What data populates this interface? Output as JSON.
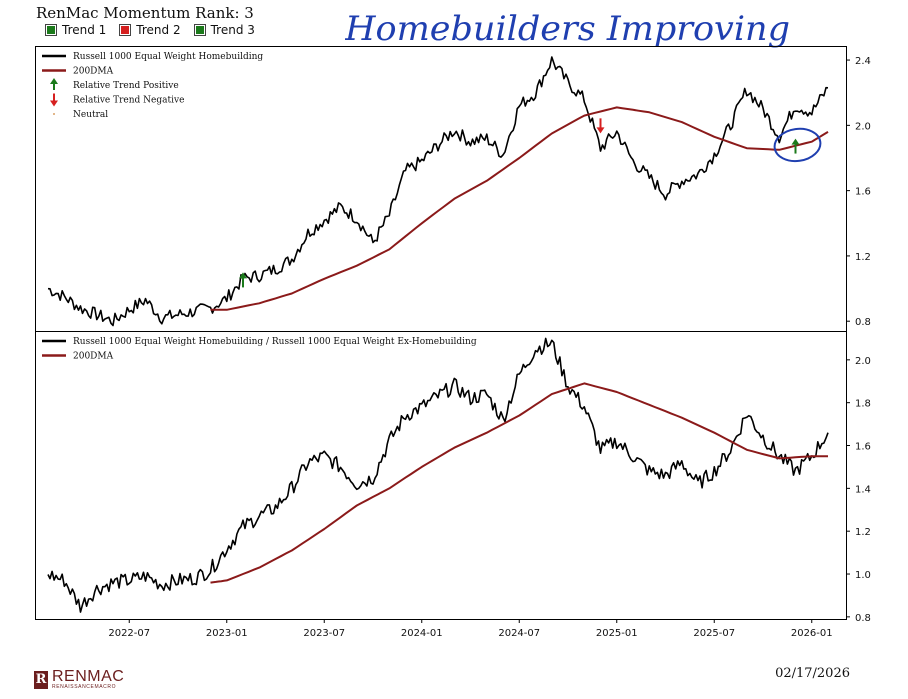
{
  "header": {
    "title": "RenMac Momentum Rank: 3",
    "trends": [
      {
        "label": "Trend 1",
        "color": "#1b7a1b"
      },
      {
        "label": "Trend 2",
        "color": "#d62020"
      },
      {
        "label": "Trend 3",
        "color": "#1b7a1b"
      }
    ]
  },
  "annotation": {
    "text": "Homebuilders Improving",
    "color": "#1f3fb0",
    "circle_near": "2025-12"
  },
  "footer": {
    "date": "02/17/2026",
    "logo_name": "RENMAC",
    "logo_sub": "RENAISSANCEMACRO",
    "logo_mark": "R"
  },
  "chart_data": [
    {
      "type": "line",
      "x_tick_labels": [
        "2022-07",
        "2023-01",
        "2023-07",
        "2024-01",
        "2024-07",
        "2025-01",
        "2025-07",
        "2026-01"
      ],
      "x_range": [
        "2022-02",
        "2026-02"
      ],
      "y_ticks": [
        0.8,
        1.2,
        1.6,
        2.0,
        2.4
      ],
      "ylim": [
        0.74,
        2.48
      ],
      "legend_placement": "top-left",
      "legend": [
        {
          "label": "Russell 1000 Equal Weight Homebuilding",
          "kind": "line",
          "color": "#000000"
        },
        {
          "label": "200DMA",
          "kind": "line",
          "color": "#8b1a1a"
        },
        {
          "label": "Relative Trend Positive",
          "kind": "up-arrow",
          "color": "#1b7a1b"
        },
        {
          "label": "Relative Trend Negative",
          "kind": "down-arrow",
          "color": "#d62020"
        },
        {
          "label": "Neutral",
          "kind": "dot",
          "color": "#d9a066"
        }
      ],
      "series": [
        {
          "name": "Russell 1000 Equal Weight Homebuilding",
          "color": "#000000",
          "points": [
            [
              "2022-02",
              1.0
            ],
            [
              "2022-03",
              0.95
            ],
            [
              "2022-04",
              0.88
            ],
            [
              "2022-05",
              0.84
            ],
            [
              "2022-06",
              0.8
            ],
            [
              "2022-07",
              0.87
            ],
            [
              "2022-08",
              0.93
            ],
            [
              "2022-09",
              0.82
            ],
            [
              "2022-10",
              0.84
            ],
            [
              "2022-11",
              0.86
            ],
            [
              "2022-12",
              0.88
            ],
            [
              "2023-01",
              0.94
            ],
            [
              "2023-02",
              1.06
            ],
            [
              "2023-03",
              1.08
            ],
            [
              "2023-04",
              1.12
            ],
            [
              "2023-05",
              1.18
            ],
            [
              "2023-06",
              1.34
            ],
            [
              "2023-07",
              1.42
            ],
            [
              "2023-08",
              1.5
            ],
            [
              "2023-09",
              1.43
            ],
            [
              "2023-10",
              1.28
            ],
            [
              "2023-11",
              1.45
            ],
            [
              "2023-12",
              1.72
            ],
            [
              "2024-01",
              1.78
            ],
            [
              "2024-02",
              1.88
            ],
            [
              "2024-03",
              1.97
            ],
            [
              "2024-04",
              1.9
            ],
            [
              "2024-05",
              1.92
            ],
            [
              "2024-06",
              1.82
            ],
            [
              "2024-07",
              2.12
            ],
            [
              "2024-08",
              2.2
            ],
            [
              "2024-09",
              2.4
            ],
            [
              "2024-10",
              2.26
            ],
            [
              "2024-11",
              2.16
            ],
            [
              "2024-12",
              1.86
            ],
            [
              "2025-01",
              1.96
            ],
            [
              "2025-02",
              1.78
            ],
            [
              "2025-03",
              1.68
            ],
            [
              "2025-04",
              1.58
            ],
            [
              "2025-05",
              1.66
            ],
            [
              "2025-06",
              1.7
            ],
            [
              "2025-07",
              1.82
            ],
            [
              "2025-08",
              2.0
            ],
            [
              "2025-09",
              2.22
            ],
            [
              "2025-10",
              2.1
            ],
            [
              "2025-11",
              1.93
            ],
            [
              "2025-12",
              2.12
            ],
            [
              "2026-01",
              2.08
            ],
            [
              "2026-02",
              2.23
            ]
          ]
        },
        {
          "name": "200DMA",
          "color": "#8b1a1a",
          "points": [
            [
              "2022-12",
              0.87
            ],
            [
              "2023-01",
              0.87
            ],
            [
              "2023-03",
              0.91
            ],
            [
              "2023-05",
              0.97
            ],
            [
              "2023-07",
              1.06
            ],
            [
              "2023-09",
              1.14
            ],
            [
              "2023-11",
              1.24
            ],
            [
              "2024-01",
              1.4
            ],
            [
              "2024-03",
              1.55
            ],
            [
              "2024-05",
              1.66
            ],
            [
              "2024-07",
              1.8
            ],
            [
              "2024-09",
              1.95
            ],
            [
              "2024-11",
              2.06
            ],
            [
              "2025-01",
              2.11
            ],
            [
              "2025-03",
              2.08
            ],
            [
              "2025-05",
              2.02
            ],
            [
              "2025-07",
              1.93
            ],
            [
              "2025-09",
              1.86
            ],
            [
              "2025-11",
              1.85
            ],
            [
              "2026-01",
              1.9
            ],
            [
              "2026-02",
              1.96
            ]
          ]
        }
      ],
      "markers": [
        {
          "x": "2023-02",
          "y": 1.05,
          "kind": "up-arrow"
        },
        {
          "x": "2024-12",
          "y": 2.0,
          "kind": "down-arrow"
        },
        {
          "x": "2025-12",
          "y": 1.87,
          "kind": "up-arrow"
        }
      ]
    },
    {
      "type": "line",
      "x_tick_labels": [
        "2022-07",
        "2023-01",
        "2023-07",
        "2024-01",
        "2024-07",
        "2025-01",
        "2025-07",
        "2026-01"
      ],
      "x_range": [
        "2022-02",
        "2026-02"
      ],
      "y_ticks": [
        0.8,
        1.0,
        1.2,
        1.4,
        1.6,
        1.8,
        2.0
      ],
      "ylim": [
        0.79,
        2.13
      ],
      "legend_placement": "top-left",
      "legend": [
        {
          "label": "Russell 1000 Equal Weight Homebuilding / Russell 1000 Equal Weight Ex-Homebuilding",
          "kind": "line",
          "color": "#000000"
        },
        {
          "label": "200DMA",
          "kind": "line",
          "color": "#8b1a1a"
        }
      ],
      "series": [
        {
          "name": "Russell 1000 Equal Weight Homebuilding / Russell 1000 Equal Weight Ex-Homebuilding",
          "color": "#000000",
          "points": [
            [
              "2022-02",
              1.0
            ],
            [
              "2022-03",
              0.97
            ],
            [
              "2022-04",
              0.85
            ],
            [
              "2022-05",
              0.93
            ],
            [
              "2022-06",
              0.96
            ],
            [
              "2022-07",
              0.97
            ],
            [
              "2022-08",
              0.99
            ],
            [
              "2022-09",
              0.95
            ],
            [
              "2022-10",
              0.97
            ],
            [
              "2022-11",
              0.98
            ],
            [
              "2022-12",
              1.02
            ],
            [
              "2023-01",
              1.12
            ],
            [
              "2023-02",
              1.22
            ],
            [
              "2023-03",
              1.27
            ],
            [
              "2023-04",
              1.31
            ],
            [
              "2023-05",
              1.4
            ],
            [
              "2023-06",
              1.52
            ],
            [
              "2023-07",
              1.55
            ],
            [
              "2023-08",
              1.5
            ],
            [
              "2023-09",
              1.42
            ],
            [
              "2023-10",
              1.45
            ],
            [
              "2023-11",
              1.62
            ],
            [
              "2023-12",
              1.74
            ],
            [
              "2024-01",
              1.78
            ],
            [
              "2024-02",
              1.83
            ],
            [
              "2024-03",
              1.88
            ],
            [
              "2024-04",
              1.82
            ],
            [
              "2024-05",
              1.84
            ],
            [
              "2024-06",
              1.72
            ],
            [
              "2024-07",
              1.93
            ],
            [
              "2024-08",
              2.05
            ],
            [
              "2024-09",
              2.08
            ],
            [
              "2024-10",
              1.88
            ],
            [
              "2024-11",
              1.78
            ],
            [
              "2024-12",
              1.58
            ],
            [
              "2025-01",
              1.62
            ],
            [
              "2025-02",
              1.55
            ],
            [
              "2025-03",
              1.48
            ],
            [
              "2025-04",
              1.46
            ],
            [
              "2025-05",
              1.52
            ],
            [
              "2025-06",
              1.42
            ],
            [
              "2025-07",
              1.48
            ],
            [
              "2025-08",
              1.58
            ],
            [
              "2025-09",
              1.75
            ],
            [
              "2025-10",
              1.64
            ],
            [
              "2025-11",
              1.55
            ],
            [
              "2025-12",
              1.48
            ],
            [
              "2026-01",
              1.55
            ],
            [
              "2026-02",
              1.66
            ]
          ]
        },
        {
          "name": "200DMA",
          "color": "#8b1a1a",
          "points": [
            [
              "2022-12",
              0.96
            ],
            [
              "2023-01",
              0.97
            ],
            [
              "2023-03",
              1.03
            ],
            [
              "2023-05",
              1.11
            ],
            [
              "2023-07",
              1.21
            ],
            [
              "2023-09",
              1.32
            ],
            [
              "2023-11",
              1.4
            ],
            [
              "2024-01",
              1.5
            ],
            [
              "2024-03",
              1.59
            ],
            [
              "2024-05",
              1.66
            ],
            [
              "2024-07",
              1.74
            ],
            [
              "2024-09",
              1.84
            ],
            [
              "2024-11",
              1.89
            ],
            [
              "2025-01",
              1.85
            ],
            [
              "2025-03",
              1.79
            ],
            [
              "2025-05",
              1.73
            ],
            [
              "2025-07",
              1.66
            ],
            [
              "2025-09",
              1.58
            ],
            [
              "2025-11",
              1.54
            ],
            [
              "2026-01",
              1.55
            ],
            [
              "2026-02",
              1.55
            ]
          ]
        }
      ]
    }
  ]
}
